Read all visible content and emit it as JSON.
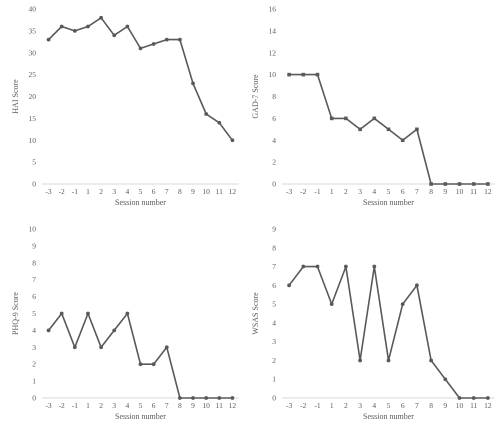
{
  "chart_data": [
    {
      "type": "line",
      "title": "",
      "xlabel": "Session number",
      "ylabel": "HAI Score",
      "categories": [
        "-3",
        "-2",
        "-1",
        "1",
        "2",
        "3",
        "4",
        "5",
        "6",
        "7",
        "8",
        "9",
        "10",
        "11",
        "12"
      ],
      "values": [
        33,
        36,
        35,
        36,
        38,
        34,
        36,
        31,
        32,
        33,
        33,
        23,
        16,
        14,
        10
      ],
      "ylim": [
        0,
        40
      ],
      "yticks": [
        "0",
        "5",
        "10",
        "15",
        "20",
        "25",
        "30",
        "35",
        "40"
      ],
      "grid": false,
      "legend": "none",
      "line_color": "#595959",
      "marker": "circle"
    },
    {
      "type": "line",
      "title": "",
      "xlabel": "Session number",
      "ylabel": "GAD-7 Score",
      "categories": [
        "-3",
        "-2",
        "-1",
        "1",
        "2",
        "3",
        "4",
        "5",
        "6",
        "7",
        "8",
        "9",
        "10",
        "11",
        "12"
      ],
      "values": [
        10,
        10,
        10,
        6,
        6,
        5,
        6,
        5,
        4,
        5,
        0,
        0,
        0,
        0,
        0
      ],
      "ylim": [
        0,
        16
      ],
      "yticks": [
        "0",
        "2",
        "4",
        "6",
        "8",
        "10",
        "12",
        "14",
        "16"
      ],
      "grid": false,
      "legend": "none",
      "line_color": "#595959",
      "marker": "square"
    },
    {
      "type": "line",
      "title": "",
      "xlabel": "Session number",
      "ylabel": "PHQ-9 Score",
      "categories": [
        "-3",
        "-2",
        "-1",
        "1",
        "2",
        "3",
        "4",
        "5",
        "6",
        "7",
        "8",
        "9",
        "10",
        "11",
        "12"
      ],
      "values": [
        4,
        5,
        3,
        5,
        3,
        4,
        5,
        2,
        2,
        3,
        0,
        0,
        0,
        0,
        0
      ],
      "ylim": [
        0,
        10
      ],
      "yticks": [
        "0",
        "1",
        "2",
        "3",
        "4",
        "5",
        "6",
        "7",
        "8",
        "9",
        "10"
      ],
      "grid": false,
      "legend": "none",
      "line_color": "#595959",
      "marker": "circle"
    },
    {
      "type": "line",
      "title": "",
      "xlabel": "Session number",
      "ylabel": "WSAS Score",
      "categories": [
        "-3",
        "-2",
        "-1",
        "1",
        "2",
        "3",
        "4",
        "5",
        "6",
        "7",
        "8",
        "9",
        "10",
        "11",
        "12"
      ],
      "values": [
        6,
        7,
        7,
        5,
        7,
        2,
        7,
        2,
        5,
        6,
        2,
        1,
        0,
        0,
        0
      ],
      "ylim": [
        0,
        9
      ],
      "yticks": [
        "0",
        "1",
        "2",
        "3",
        "4",
        "5",
        "6",
        "7",
        "8",
        "9"
      ],
      "grid": false,
      "legend": "none",
      "line_color": "#595959",
      "marker": "circle"
    }
  ]
}
